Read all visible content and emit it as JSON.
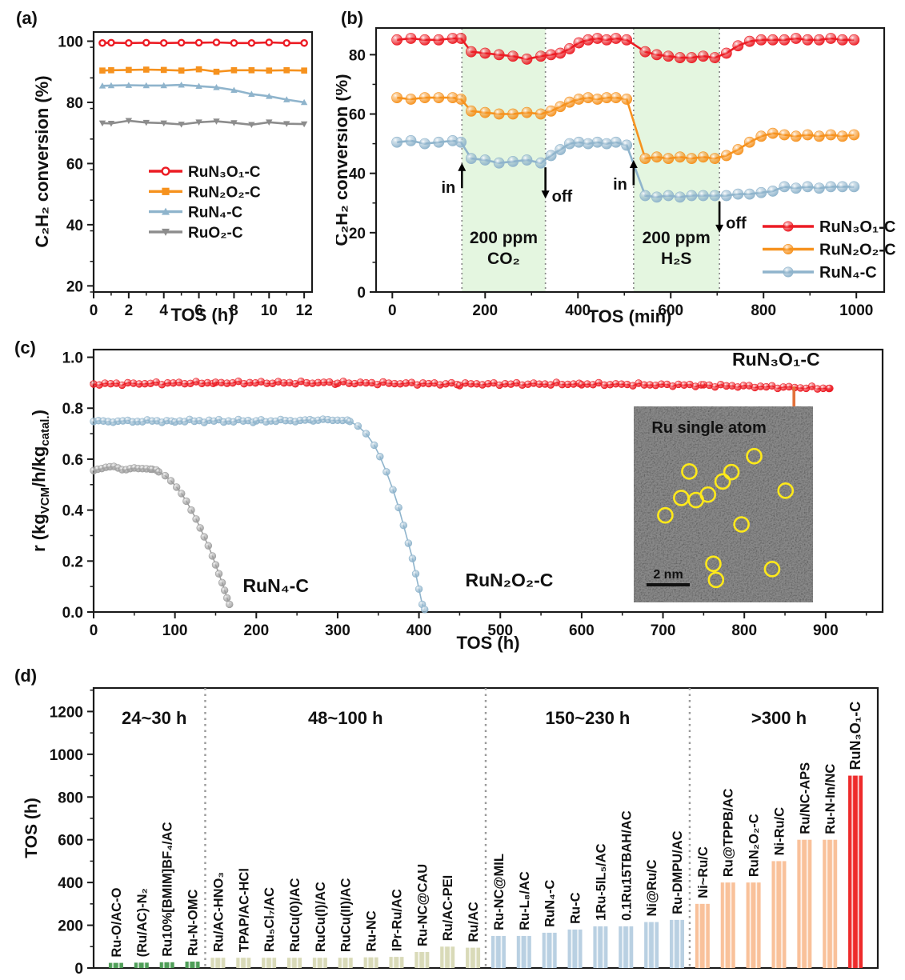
{
  "figure": {
    "panels": {
      "a": {
        "letter": "(a)"
      },
      "b": {
        "letter": "(b)"
      },
      "c": {
        "letter": "(c)"
      },
      "d": {
        "letter": "(d)"
      }
    },
    "colors": {
      "red": "#ec1c24",
      "orange": "#f6921e",
      "blue": "#8fb4cc",
      "gray": "#8c8c8c",
      "gray_c": "#9e9e9e",
      "region_green": "#e4f6e0",
      "dotted": "#8a8a8a",
      "pin_orange": "#e2703a",
      "circle_yellow": "#ffe91a"
    }
  },
  "chart_data": [
    {
      "panel": "a",
      "type": "line",
      "xlabel": "TOS (h)",
      "ylabel": "C₂H₂ conversion (%)",
      "xlim": [
        0,
        12.45
      ],
      "ylim": [
        18,
        103
      ],
      "xticks": [
        0,
        2,
        4,
        6,
        8,
        10,
        12
      ],
      "xminor": 1,
      "yticks": [
        20,
        40,
        60,
        80,
        100
      ],
      "yminor": 10,
      "x": [
        0.5,
        1,
        2,
        3,
        4,
        5,
        6,
        7,
        8,
        9,
        10,
        11,
        12
      ],
      "series": [
        {
          "name": "RuN₃O₁-C",
          "color": "#ec1c24",
          "marker": "circle-open",
          "y": [
            99.4,
            99.5,
            99.4,
            99.5,
            99.4,
            99.5,
            99.5,
            99.6,
            99.4,
            99.4,
            99.6,
            99.4,
            99.4
          ]
        },
        {
          "name": "RuN₂O₂-C",
          "color": "#f6921e",
          "marker": "square",
          "y": [
            90.4,
            90.5,
            90.6,
            90.7,
            90.6,
            90.4,
            90.8,
            90.0,
            90.5,
            90.5,
            90.4,
            90.5,
            90.4
          ]
        },
        {
          "name": "RuN₄-C",
          "color": "#8fb4cc",
          "marker": "triangle-up",
          "y": [
            85.4,
            85.5,
            85.6,
            85.5,
            85.5,
            85.7,
            85.3,
            84.9,
            84.0,
            82.7,
            82.0,
            80.9,
            80.0
          ]
        },
        {
          "name": "RuO₂-C",
          "color": "#8c8c8c",
          "marker": "triangle-down",
          "y": [
            73.2,
            73.1,
            74.0,
            73.4,
            73.2,
            72.8,
            73.5,
            73.8,
            73.3,
            72.7,
            73.5,
            73.0,
            72.9
          ]
        }
      ],
      "legend": {
        "items": [
          {
            "label": "RuN₃O₁-C",
            "color": "#ec1c24",
            "marker": "circle-open"
          },
          {
            "label": "RuN₂O₂-C",
            "color": "#f6921e",
            "marker": "square"
          },
          {
            "label": "RuN₄-C",
            "color": "#8fb4cc",
            "marker": "triangle-up"
          },
          {
            "label": "RuO₂-C",
            "color": "#8c8c8c",
            "marker": "triangle-down"
          }
        ]
      }
    },
    {
      "panel": "b",
      "type": "line",
      "xlabel": "TOS (min)",
      "ylabel": "C₂H₂ conversion (%)",
      "xlim": [
        -35,
        1060
      ],
      "ylim": [
        0,
        89
      ],
      "xticks": [
        0,
        200,
        400,
        600,
        800,
        1000
      ],
      "xminor": 100,
      "yticks": [
        0,
        20,
        40,
        60,
        80
      ],
      "yminor": 10,
      "regions": [
        {
          "x0": 150,
          "x1": 330,
          "lines": [
            "200 ppm",
            "CO₂"
          ],
          "label_x": 240,
          "label_y": [
            16.5,
            9.5
          ],
          "fill": "#e4f6e0"
        },
        {
          "x0": 520,
          "x1": 705,
          "lines": [
            "200 ppm",
            "H₂S"
          ],
          "label_x": 612,
          "label_y": [
            16.5,
            9.5
          ],
          "fill": "#e4f6e0"
        }
      ],
      "annotations": [
        {
          "text": "in",
          "x": 150,
          "y0": 35,
          "y1": 43.5,
          "dir": "up",
          "side": "left",
          "ty": 33.5
        },
        {
          "text": "off",
          "x": 330,
          "y0": 42,
          "y1": 31.5,
          "dir": "down",
          "side": "right",
          "ty": 30.5
        },
        {
          "text": "in",
          "x": 520,
          "y0": 36,
          "y1": 44.5,
          "dir": "up",
          "side": "left",
          "ty": 34.5
        },
        {
          "text": "off",
          "x": 705,
          "y0": 30.5,
          "y1": 20,
          "dir": "down",
          "side": "right",
          "ty": 21.5
        }
      ],
      "x": [
        10,
        40,
        70,
        100,
        130,
        148,
        170,
        200,
        230,
        260,
        290,
        320,
        342,
        362,
        382,
        402,
        422,
        442,
        462,
        482,
        505,
        545,
        570,
        595,
        620,
        645,
        670,
        695,
        720,
        745,
        770,
        795,
        820,
        845,
        870,
        895,
        920,
        945,
        970,
        995
      ],
      "series": [
        {
          "name": "RuN₃O₁-C",
          "color": "#ec1c24",
          "marker": "ball",
          "y": [
            85,
            85.5,
            85,
            85,
            85.5,
            85.5,
            81,
            80.5,
            80,
            79.5,
            78.5,
            79.5,
            80,
            80.5,
            82,
            84,
            85,
            85.5,
            85,
            85.5,
            85,
            81,
            80,
            79.5,
            79,
            79,
            79.5,
            79,
            80.5,
            83,
            84.5,
            85,
            85,
            85,
            85.5,
            85,
            85,
            85.5,
            85,
            85
          ]
        },
        {
          "name": "RuN₂O₂-C",
          "color": "#f6921e",
          "marker": "ball",
          "y": [
            65.5,
            65,
            65.5,
            65.5,
            65.5,
            65,
            61,
            60.5,
            60,
            60,
            60.5,
            60,
            61,
            62.5,
            64,
            65,
            65.5,
            65,
            65.5,
            65.5,
            65,
            45,
            45.5,
            45,
            45.5,
            45,
            45.5,
            45,
            46,
            48,
            50.5,
            52.5,
            53.5,
            53,
            52.5,
            53,
            52.5,
            53,
            52.5,
            53
          ]
        },
        {
          "name": "RuN₄-C",
          "color": "#8fb4cc",
          "marker": "ball",
          "y": [
            50.5,
            51,
            50,
            50.5,
            51,
            50.5,
            45,
            44.5,
            43.5,
            44,
            44.5,
            43.5,
            46,
            48,
            50,
            50.5,
            50,
            50.5,
            50,
            50.5,
            49.5,
            32.5,
            32,
            32.5,
            32,
            32.5,
            32.5,
            32.5,
            32.5,
            33,
            33,
            33.5,
            34,
            35.5,
            35,
            35.5,
            35,
            35.5,
            35.5,
            35.5
          ]
        }
      ],
      "legend": {
        "items": [
          {
            "label": "RuN₃O₁-C",
            "color": "#ec1c24",
            "marker": "ball"
          },
          {
            "label": "RuN₂O₂-C",
            "color": "#f6921e",
            "marker": "ball"
          },
          {
            "label": "RuN₄-C",
            "color": "#8fb4cc",
            "marker": "ball"
          }
        ]
      }
    },
    {
      "panel": "c",
      "type": "line",
      "xlabel": "TOS (h)",
      "ylabel_segments": [
        {
          "t": "r (kg"
        },
        {
          "t": "VCM",
          "sub": true
        },
        {
          "t": "/h/kg"
        },
        {
          "t": "catal.",
          "sub": true
        },
        {
          "t": ")"
        }
      ],
      "xlim": [
        0,
        970
      ],
      "ylim": [
        0,
        1.03
      ],
      "xticks": [
        0,
        100,
        200,
        300,
        400,
        500,
        600,
        700,
        800,
        900
      ],
      "xminor": 50,
      "yticks": [
        0.0,
        0.2,
        0.4,
        0.6,
        0.8,
        1.0
      ],
      "yminor": 0.1,
      "ytick_decimals": 1,
      "series": [
        {
          "name": "RuN₃O₁-C",
          "color": "#ec1c24",
          "marker": "ball",
          "densify": 7,
          "jitter": 0.006,
          "keypoints": [
            [
              0,
              0.895
            ],
            [
              150,
              0.9
            ],
            [
              300,
              0.9
            ],
            [
              450,
              0.895
            ],
            [
              600,
              0.895
            ],
            [
              750,
              0.89
            ],
            [
              905,
              0.878
            ]
          ]
        },
        {
          "name": "RuN₂O₂-C",
          "color": "#8fb4cc",
          "marker": "ball",
          "densify": 6,
          "densify_until": 315,
          "jitter": 0.006,
          "keypoints": [
            [
              0,
              0.748
            ],
            [
              100,
              0.75
            ],
            [
              200,
              0.75
            ],
            [
              270,
              0.752
            ],
            [
              300,
              0.755
            ],
            [
              315,
              0.748
            ],
            [
              325,
              0.73
            ],
            [
              335,
              0.7
            ],
            [
              345,
              0.655
            ],
            [
              352,
              0.61
            ],
            [
              360,
              0.55
            ],
            [
              368,
              0.48
            ],
            [
              375,
              0.41
            ],
            [
              381,
              0.34
            ],
            [
              387,
              0.27
            ],
            [
              392,
              0.21
            ],
            [
              396,
              0.15
            ],
            [
              400,
              0.09
            ],
            [
              404,
              0.03
            ],
            [
              407,
              0.01
            ]
          ]
        },
        {
          "name": "RuN₄-C",
          "color": "#9e9e9e",
          "marker": "ball",
          "densify": 5,
          "densify_until": 80,
          "jitter": 0.005,
          "keypoints": [
            [
              0,
              0.555
            ],
            [
              15,
              0.57
            ],
            [
              30,
              0.565
            ],
            [
              45,
              0.56
            ],
            [
              60,
              0.565
            ],
            [
              72,
              0.56
            ],
            [
              80,
              0.55
            ],
            [
              88,
              0.535
            ],
            [
              95,
              0.515
            ],
            [
              102,
              0.49
            ],
            [
              108,
              0.465
            ],
            [
              114,
              0.435
            ],
            [
              120,
              0.4
            ],
            [
              126,
              0.365
            ],
            [
              131,
              0.33
            ],
            [
              136,
              0.295
            ],
            [
              141,
              0.26
            ],
            [
              146,
              0.22
            ],
            [
              150,
              0.185
            ],
            [
              154,
              0.15
            ],
            [
              158,
              0.115
            ],
            [
              161,
              0.085
            ],
            [
              164,
              0.055
            ],
            [
              167,
              0.03
            ]
          ]
        }
      ],
      "inplot_labels": [
        {
          "text": "RuN₄-C",
          "x": 224,
          "y": 0.078,
          "size": 23
        },
        {
          "text": "RuN₂O₂-C",
          "x": 511,
          "y": 0.1,
          "size": 23
        },
        {
          "text": "RuN₃O₁-C",
          "x": 839,
          "y": 0.967,
          "size": 23
        }
      ],
      "pin": {
        "x": 861,
        "y_from": 0.885,
        "y_to": 0.73,
        "color": "#e2703a"
      },
      "inset": {
        "title": "Ru single atom",
        "scalebar_label": "2 nm",
        "circles": [
          [
            0.672,
            0.254
          ],
          [
            0.31,
            0.332
          ],
          [
            0.545,
            0.335
          ],
          [
            0.496,
            0.383
          ],
          [
            0.265,
            0.467
          ],
          [
            0.347,
            0.478
          ],
          [
            0.414,
            0.45
          ],
          [
            0.847,
            0.43
          ],
          [
            0.176,
            0.556
          ],
          [
            0.601,
            0.602
          ],
          [
            0.444,
            0.803
          ],
          [
            0.459,
            0.885
          ],
          [
            0.772,
            0.83
          ]
        ]
      }
    },
    {
      "panel": "d",
      "type": "bar",
      "ylabel": "TOS (h)",
      "ylim": [
        0,
        1310
      ],
      "yticks": [
        0,
        200,
        400,
        600,
        800,
        1000,
        1200
      ],
      "yminor": 100,
      "groups": [
        {
          "header": "24~30 h",
          "bar_color": "#4f9e58",
          "items": [
            [
              "Ru-O/AC-O",
              24
            ],
            [
              "(Ru/AC)-N₂",
              25
            ],
            [
              "Ru10%[BMIM]BF₄/AC",
              27
            ],
            [
              "Ru-N-OMC",
              30
            ]
          ]
        },
        {
          "header": "48~100 h",
          "bar_color": "#d9dab8",
          "items": [
            [
              "Ru/AC-HNO₃",
              48
            ],
            [
              "TPAP/AC-HCl",
              48
            ],
            [
              "Ru₅Cl₇/AC",
              48
            ],
            [
              "RuCu(0)/AC",
              48
            ],
            [
              "RuCu(I)/AC",
              48
            ],
            [
              "RuCu(II)/AC",
              48
            ],
            [
              "Ru-NC",
              50
            ],
            [
              "IPr-Ru/AC",
              52
            ],
            [
              "Ru-NC@CAU",
              75
            ],
            [
              "Ru/AC-PEI",
              100
            ],
            [
              "Ru/AC",
              95
            ]
          ]
        },
        {
          "header": "150~230 h",
          "bar_color": "#b9d0e2",
          "items": [
            [
              "Ru-NC@MIL",
              150
            ],
            [
              "Ru-L₈/AC",
              150
            ],
            [
              "RuN₄-C",
              165
            ],
            [
              "Ru-C",
              180
            ],
            [
              "1Ru-5IL₅/AC",
              195
            ],
            [
              "0.1Ru15TBAH/AC",
              195
            ],
            [
              "Ni@Ru/C",
              215
            ],
            [
              "Ru-DMPU/AC",
              225
            ]
          ]
        },
        {
          "header": ">300 h",
          "bar_color": "#f9c19a",
          "items": [
            [
              "Ni~Ru/C",
              300
            ],
            [
              "Ru@TPPB/AC",
              400
            ],
            [
              "RuN₂O₂-C",
              400
            ],
            [
              "Ni-Ru/C",
              500
            ],
            [
              "Ru/NC-APS",
              600
            ],
            [
              "Ru-N-In/NC",
              600
            ],
            [
              "RuN₃O₁-C",
              900
            ]
          ]
        }
      ],
      "highlight": {
        "name": "RuN₃O₁-C",
        "bar_color": "#ee2b2b",
        "label_color": "#ed1c24"
      }
    }
  ]
}
